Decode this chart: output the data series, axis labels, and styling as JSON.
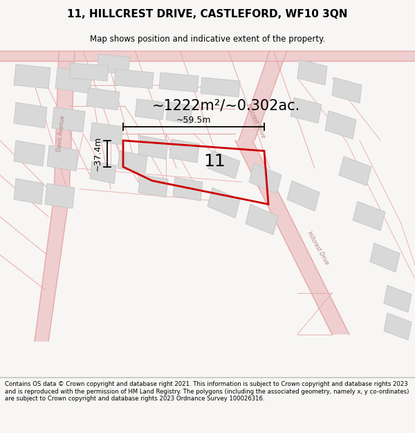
{
  "title_line1": "11, HILLCREST DRIVE, CASTLEFORD, WF10 3QN",
  "title_line2": "Map shows position and indicative extent of the property.",
  "area_text": "~1222m²/~0.302ac.",
  "property_number": "11",
  "dim_width": "~59.5m",
  "dim_height": "~37.4m",
  "footer_text": "Contains OS data © Crown copyright and database right 2021. This information is subject to Crown copyright and database rights 2023 and is reproduced with the permission of HM Land Registry. The polygons (including the associated geometry, namely x, y co-ordinates) are subject to Crown copyright and database rights 2023 Ordnance Survey 100026316.",
  "bg_color": "#f7f6f4",
  "map_bg": "#f7f6f4",
  "road_color": "#f0c8c8",
  "building_color": "#d8d8d8",
  "building_edge": "#c4c4c4",
  "highlight_color": "#cc0000",
  "road_line_color": "#e8a8a8",
  "davis_avenue_label": "Davis Avenue",
  "hillcrest_drive_label": "Hillcrest Drive"
}
